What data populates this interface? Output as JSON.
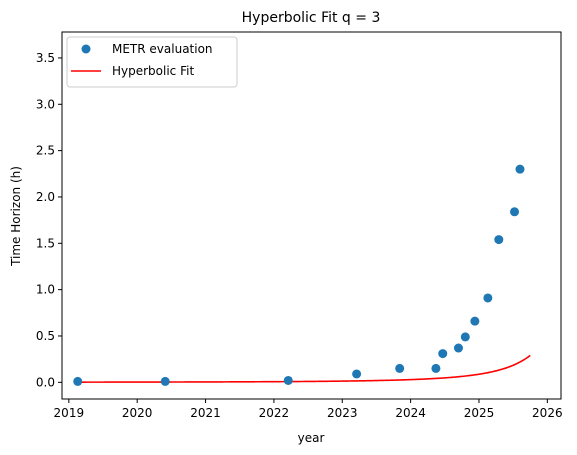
{
  "chart_data": {
    "type": "scatter",
    "title": "Hyperbolic Fit q = 3",
    "xlabel": "year",
    "ylabel": "Time Horizon (h)",
    "xlim": [
      2018.9,
      2026.2
    ],
    "ylim": [
      -0.18,
      3.78
    ],
    "xticks": [
      2019,
      2020,
      2021,
      2022,
      2023,
      2024,
      2025,
      2026
    ],
    "yticks": [
      0.0,
      0.5,
      1.0,
      1.5,
      2.0,
      2.5,
      3.0,
      3.5
    ],
    "grid": false,
    "legend_position": "top-left",
    "series": [
      {
        "name": "METR evaluation",
        "kind": "scatter",
        "color": "#1f77b4",
        "x": [
          2019.13,
          2020.41,
          2022.21,
          2023.21,
          2023.84,
          2024.37,
          2024.47,
          2024.7,
          2024.8,
          2024.94,
          2025.13,
          2025.29,
          2025.52,
          2025.6
        ],
        "y": [
          0.01,
          0.01,
          0.02,
          0.09,
          0.15,
          0.15,
          0.31,
          0.37,
          0.49,
          0.66,
          0.91,
          1.54,
          1.84,
          2.3
        ]
      },
      {
        "name": "Hyperbolic Fit",
        "kind": "line",
        "color": "#ff0000",
        "model": {
          "form": "a / (T - x)^3",
          "a": 1.02,
          "T": 2027.27
        },
        "x_range": [
          2019.13,
          2025.75
        ]
      }
    ]
  }
}
